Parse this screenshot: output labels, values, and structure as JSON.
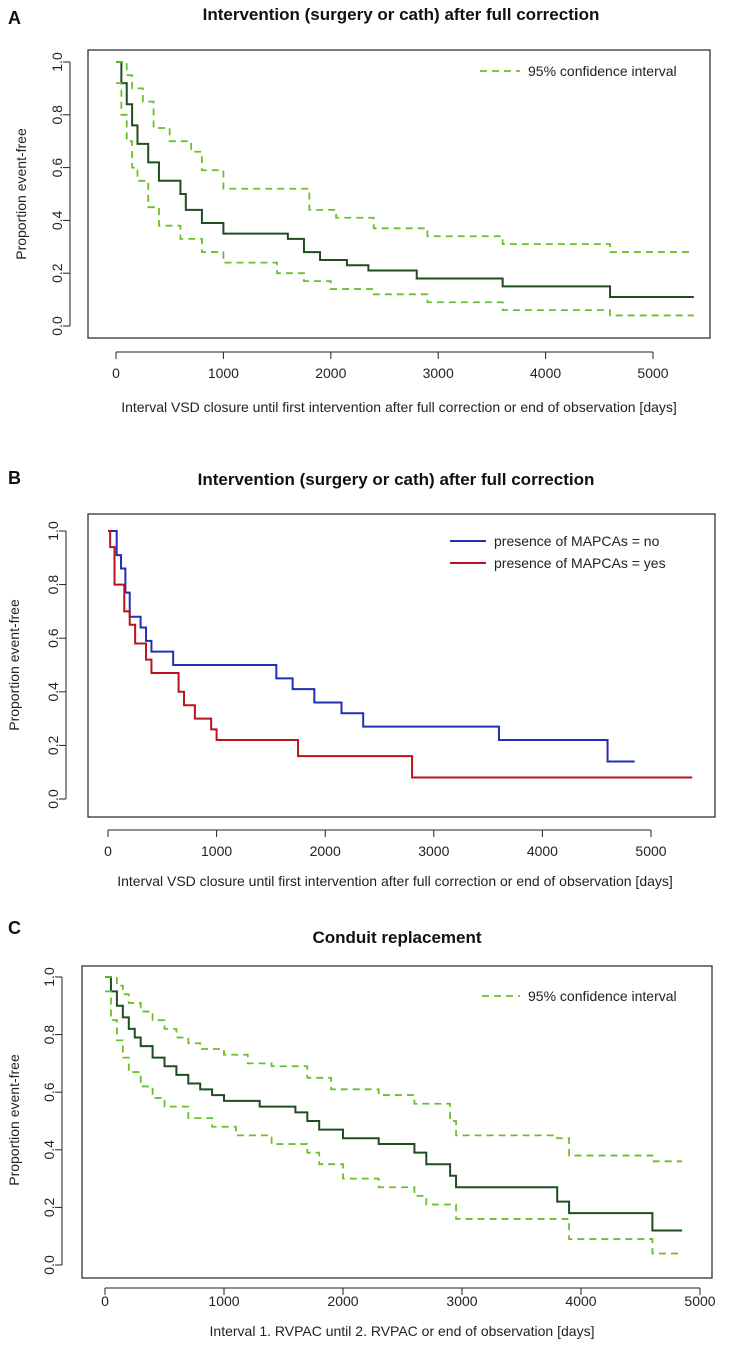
{
  "colors": {
    "dark_green": "#1e4d1e",
    "light_green": "#6abf2a",
    "blue": "#1f2fb8",
    "red": "#b8141e"
  },
  "chart_data": [
    {
      "panel": "A",
      "type": "line",
      "title": "Intervention (surgery or cath) after full correction",
      "xlabel": "Interval VSD closure until first intervention after full correction or end of observation [days]",
      "ylabel": "Proportion event-free",
      "xlim": [
        0,
        5400
      ],
      "ylim": [
        0,
        1.0
      ],
      "xticks": [
        0,
        1000,
        2000,
        3000,
        4000,
        5000
      ],
      "yticks": [
        0.0,
        0.2,
        0.4,
        0.6,
        0.8,
        1.0
      ],
      "ytick_labels": [
        "0.0",
        "0.2",
        "0.4",
        "0.6",
        "0.8",
        "1.0"
      ],
      "legend": [
        {
          "label": "95% confidence interval",
          "style": "dashed",
          "color": "#6abf2a"
        }
      ],
      "series": [
        {
          "name": "Survival estimate",
          "style": "solid",
          "color": "#1e4d1e",
          "x": [
            0,
            50,
            100,
            150,
            200,
            300,
            400,
            600,
            650,
            800,
            1000,
            1600,
            1750,
            1900,
            2150,
            2350,
            2800,
            3600,
            4600,
            5380
          ],
          "y": [
            1.0,
            0.92,
            0.84,
            0.76,
            0.69,
            0.62,
            0.55,
            0.5,
            0.44,
            0.39,
            0.35,
            0.33,
            0.28,
            0.25,
            0.23,
            0.21,
            0.18,
            0.15,
            0.11,
            0.11
          ]
        },
        {
          "name": "95% CI upper",
          "style": "dashed",
          "color": "#6abf2a",
          "x": [
            0,
            100,
            150,
            250,
            350,
            500,
            700,
            800,
            1000,
            1600,
            1800,
            2050,
            2400,
            2900,
            3600,
            4600,
            5380
          ],
          "y": [
            1.0,
            0.95,
            0.9,
            0.85,
            0.75,
            0.7,
            0.66,
            0.59,
            0.52,
            0.52,
            0.44,
            0.41,
            0.37,
            0.34,
            0.31,
            0.28,
            0.28
          ]
        },
        {
          "name": "95% CI lower",
          "style": "dashed",
          "color": "#6abf2a",
          "x": [
            0,
            50,
            100,
            150,
            200,
            300,
            400,
            600,
            800,
            1000,
            1500,
            1750,
            2000,
            2400,
            2900,
            3600,
            4600,
            5380
          ],
          "y": [
            0.92,
            0.8,
            0.7,
            0.6,
            0.55,
            0.45,
            0.38,
            0.33,
            0.28,
            0.24,
            0.2,
            0.17,
            0.14,
            0.12,
            0.09,
            0.06,
            0.04,
            0.04
          ]
        }
      ]
    },
    {
      "panel": "B",
      "type": "line",
      "title": "Intervention (surgery or cath) after full correction",
      "xlabel": "Interval VSD closure until first intervention after full correction or end of observation [days]",
      "ylabel": "Proportion event-free",
      "xlim": [
        0,
        5400
      ],
      "ylim": [
        0,
        1.0
      ],
      "xticks": [
        0,
        1000,
        2000,
        3000,
        4000,
        5000
      ],
      "yticks": [
        0.0,
        0.2,
        0.4,
        0.6,
        0.8,
        1.0
      ],
      "ytick_labels": [
        "0.0",
        "0.2",
        "0.4",
        "0.6",
        "0.8",
        "1.0"
      ],
      "legend": [
        {
          "label": "presence of MAPCAs = no",
          "style": "solid",
          "color": "#1f2fb8"
        },
        {
          "label": "presence of MAPCAs = yes",
          "style": "solid",
          "color": "#b8141e"
        }
      ],
      "series": [
        {
          "name": "presence of MAPCAs = no",
          "style": "solid",
          "color": "#1f2fb8",
          "x": [
            0,
            30,
            80,
            120,
            160,
            200,
            300,
            350,
            400,
            600,
            1550,
            1700,
            1900,
            2150,
            2350,
            3600,
            4600,
            4850
          ],
          "y": [
            1.0,
            1.0,
            0.91,
            0.86,
            0.77,
            0.68,
            0.64,
            0.59,
            0.55,
            0.5,
            0.45,
            0.41,
            0.36,
            0.32,
            0.27,
            0.22,
            0.14,
            0.14
          ]
        },
        {
          "name": "presence of MAPCAs = yes",
          "style": "solid",
          "color": "#b8141e",
          "x": [
            0,
            20,
            60,
            150,
            200,
            250,
            350,
            400,
            650,
            700,
            800,
            950,
            1000,
            1750,
            2800,
            5380
          ],
          "y": [
            1.0,
            0.94,
            0.8,
            0.7,
            0.65,
            0.58,
            0.52,
            0.47,
            0.4,
            0.35,
            0.3,
            0.26,
            0.22,
            0.16,
            0.08,
            0.08
          ]
        }
      ]
    },
    {
      "panel": "C",
      "type": "line",
      "title": "Conduit replacement",
      "xlabel": "Interval 1. RVPAC until 2. RVPAC or end of observation [days]",
      "ylabel": "Proportion event-free",
      "xlim": [
        0,
        5000
      ],
      "ylim": [
        0,
        1.0
      ],
      "xticks": [
        0,
        1000,
        2000,
        3000,
        4000,
        5000
      ],
      "yticks": [
        0.0,
        0.2,
        0.4,
        0.6,
        0.8,
        1.0
      ],
      "ytick_labels": [
        "0.0",
        "0.2",
        "0.4",
        "0.6",
        "0.8",
        "1.0"
      ],
      "legend": [
        {
          "label": "95% confidence interval",
          "style": "dashed",
          "color": "#6abf2a"
        }
      ],
      "series": [
        {
          "name": "Survival estimate",
          "style": "solid",
          "color": "#1e4d1e",
          "x": [
            0,
            50,
            100,
            150,
            200,
            250,
            300,
            400,
            500,
            600,
            700,
            800,
            900,
            1000,
            1300,
            1600,
            1700,
            1800,
            2000,
            2300,
            2600,
            2700,
            2900,
            2950,
            3750,
            3800,
            3900,
            4600,
            4850
          ],
          "y": [
            1.0,
            0.95,
            0.9,
            0.86,
            0.82,
            0.79,
            0.76,
            0.72,
            0.69,
            0.66,
            0.63,
            0.61,
            0.59,
            0.57,
            0.55,
            0.53,
            0.5,
            0.47,
            0.44,
            0.42,
            0.39,
            0.35,
            0.31,
            0.27,
            0.27,
            0.22,
            0.18,
            0.12,
            0.12
          ]
        },
        {
          "name": "95% CI upper",
          "style": "dashed",
          "color": "#6abf2a",
          "x": [
            0,
            50,
            100,
            150,
            200,
            300,
            400,
            500,
            600,
            700,
            800,
            1000,
            1200,
            1400,
            1700,
            1900,
            2300,
            2600,
            2900,
            2950,
            3800,
            3900,
            4600,
            4850
          ],
          "y": [
            1.0,
            1.0,
            0.97,
            0.94,
            0.91,
            0.88,
            0.85,
            0.82,
            0.79,
            0.77,
            0.75,
            0.73,
            0.7,
            0.69,
            0.65,
            0.61,
            0.59,
            0.56,
            0.5,
            0.45,
            0.44,
            0.38,
            0.36,
            0.36
          ]
        },
        {
          "name": "95% CI lower",
          "style": "dashed",
          "color": "#6abf2a",
          "x": [
            0,
            50,
            100,
            150,
            200,
            300,
            400,
            500,
            700,
            900,
            1100,
            1400,
            1700,
            1800,
            2000,
            2300,
            2600,
            2700,
            2950,
            3600,
            3900,
            4600,
            4850
          ],
          "y": [
            0.95,
            0.85,
            0.78,
            0.72,
            0.67,
            0.62,
            0.58,
            0.55,
            0.51,
            0.48,
            0.45,
            0.42,
            0.39,
            0.35,
            0.3,
            0.27,
            0.24,
            0.21,
            0.16,
            0.16,
            0.09,
            0.04,
            0.04
          ]
        }
      ]
    }
  ]
}
